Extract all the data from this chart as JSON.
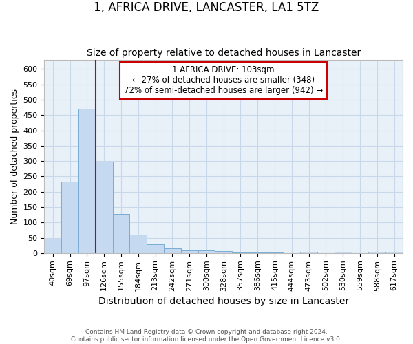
{
  "title": "1, AFRICA DRIVE, LANCASTER, LA1 5TZ",
  "subtitle": "Size of property relative to detached houses in Lancaster",
  "xlabel": "Distribution of detached houses by size in Lancaster",
  "ylabel": "Number of detached properties",
  "categories": [
    "40sqm",
    "69sqm",
    "97sqm",
    "126sqm",
    "155sqm",
    "184sqm",
    "213sqm",
    "242sqm",
    "271sqm",
    "300sqm",
    "328sqm",
    "357sqm",
    "386sqm",
    "415sqm",
    "444sqm",
    "473sqm",
    "502sqm",
    "530sqm",
    "559sqm",
    "588sqm",
    "617sqm"
  ],
  "values": [
    47,
    234,
    471,
    298,
    127,
    61,
    29,
    15,
    8,
    9,
    7,
    1,
    1,
    1,
    0,
    5,
    0,
    5,
    0,
    4,
    5
  ],
  "bar_color": "#c5d9f0",
  "bar_edge_color": "#7aadd4",
  "grid_color": "#c8d8ea",
  "background_color": "#e8f0f8",
  "vline_x_index": 2.5,
  "vline_color": "#cc0000",
  "ylim": [
    0,
    630
  ],
  "yticks": [
    0,
    50,
    100,
    150,
    200,
    250,
    300,
    350,
    400,
    450,
    500,
    550,
    600
  ],
  "annotation_text": "1 AFRICA DRIVE: 103sqm\n← 27% of detached houses are smaller (348)\n72% of semi-detached houses are larger (942) →",
  "annotation_box_color": "#ffffff",
  "annotation_box_edge": "#cc0000",
  "title_fontsize": 12,
  "subtitle_fontsize": 10,
  "ylabel_fontsize": 9,
  "xlabel_fontsize": 10,
  "tick_fontsize": 8,
  "footer1": "Contains HM Land Registry data © Crown copyright and database right 2024.",
  "footer2": "Contains public sector information licensed under the Open Government Licence v3.0."
}
